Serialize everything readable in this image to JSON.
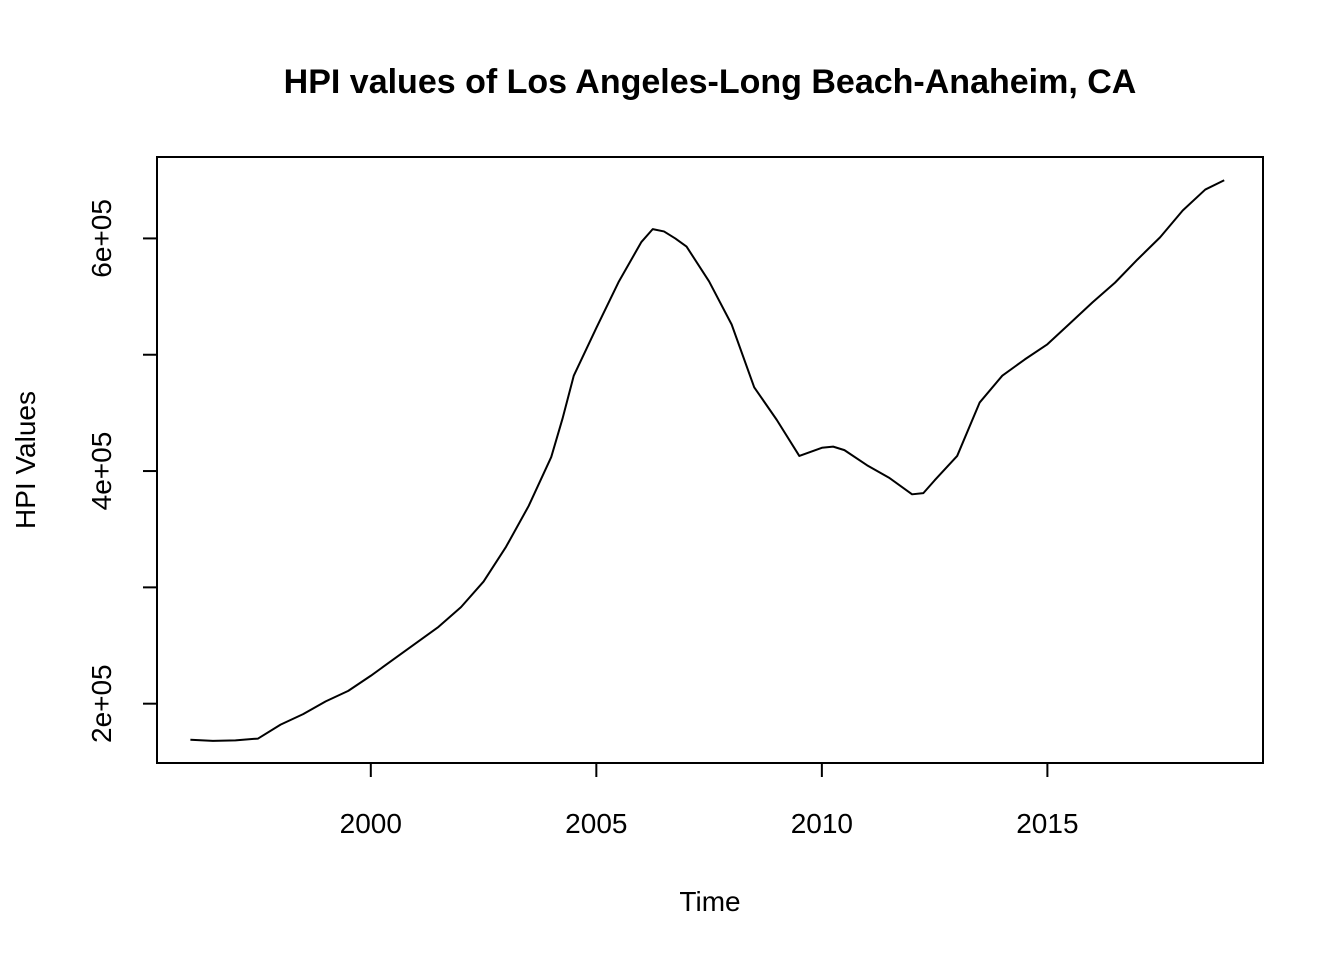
{
  "chart_data": {
    "type": "line",
    "title": "HPI values of Los Angeles-Long Beach-Anaheim, CA",
    "xlabel": "Time",
    "ylabel": "HPI Values",
    "xlim": [
      1995.26,
      2019.78
    ],
    "ylim": [
      149000,
      670000
    ],
    "x_ticks": [
      2000,
      2005,
      2010,
      2015
    ],
    "x_tick_labels": [
      "2000",
      "2005",
      "2010",
      "2015"
    ],
    "y_ticks": [
      200000,
      300000,
      400000,
      500000,
      600000
    ],
    "y_tick_labels": [
      "2e+05",
      "",
      "4e+05",
      "",
      "6e+05"
    ],
    "grid": false,
    "line_color": "#000000",
    "series": [
      {
        "x": [
          1996.0,
          1996.5,
          1997.0,
          1997.5,
          1998.0,
          1998.5,
          1999.0,
          1999.5,
          2000.0,
          2000.5,
          2001.0,
          2001.5,
          2002.0,
          2002.5,
          2003.0,
          2003.5,
          2004.0,
          2004.25,
          2004.5,
          2005.0,
          2005.5,
          2006.0,
          2006.25,
          2006.5,
          2006.75,
          2007.0,
          2007.5,
          2008.0,
          2008.5,
          2009.0,
          2009.5,
          2010.0,
          2010.25,
          2010.5,
          2011.0,
          2011.5,
          2012.0,
          2012.25,
          2012.5,
          2013.0,
          2013.5,
          2014.0,
          2014.5,
          2015.0,
          2015.5,
          2016.0,
          2016.5,
          2017.0,
          2017.5,
          2018.0,
          2018.5,
          2018.92
        ],
        "values": [
          169000,
          168000,
          168500,
          170000,
          182000,
          191000,
          202000,
          211000,
          224000,
          238000,
          252000,
          266000,
          283000,
          305000,
          335000,
          370000,
          412000,
          445000,
          482000,
          523000,
          563000,
          597000,
          608000,
          606000,
          600000,
          593000,
          563000,
          526000,
          472000,
          444000,
          413000,
          420000,
          421000,
          418000,
          405000,
          394000,
          380000,
          381000,
          392000,
          413000,
          459000,
          482000,
          496000,
          509000,
          527000,
          545000,
          562000,
          582000,
          601000,
          624000,
          642000,
          650000
        ]
      }
    ]
  }
}
